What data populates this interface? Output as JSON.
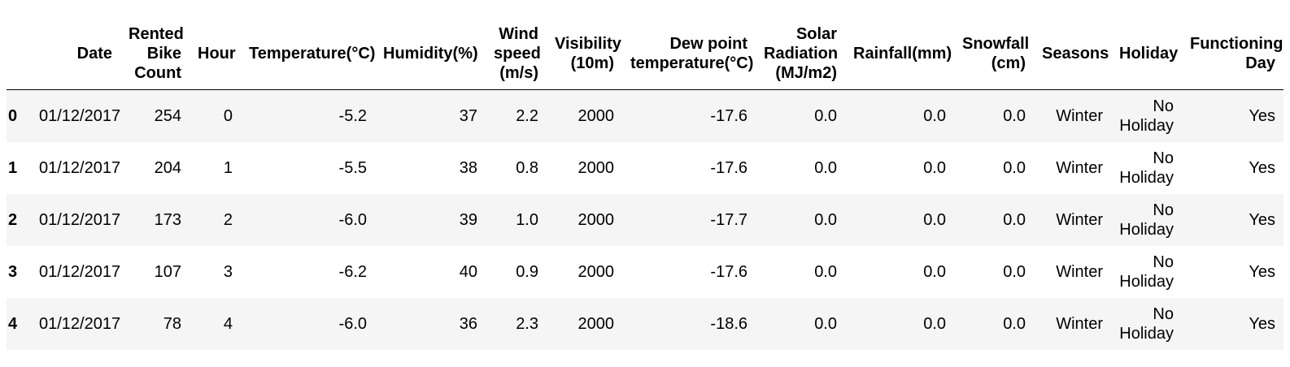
{
  "colors": {
    "stripe": "#f5f5f5",
    "header_rule": "#000000",
    "text": "#000000",
    "background": "#ffffff"
  },
  "chart_data": {
    "type": "table",
    "title": "",
    "index_label": "",
    "index": [
      "0",
      "1",
      "2",
      "3",
      "4"
    ],
    "columns": [
      "Date",
      "Rented Bike Count",
      "Hour",
      "Temperature(°C)",
      "Humidity(%)",
      "Wind speed (m/s)",
      "Visibility (10m)",
      "Dew point temperature(°C)",
      "Solar Radiation (MJ/m2)",
      "Rainfall(mm)",
      "Snowfall (cm)",
      "Seasons",
      "Holiday",
      "Functioning Day"
    ],
    "rows": [
      [
        "01/12/2017",
        "254",
        "0",
        "-5.2",
        "37",
        "2.2",
        "2000",
        "-17.6",
        "0.0",
        "0.0",
        "0.0",
        "Winter",
        "No Holiday",
        "Yes"
      ],
      [
        "01/12/2017",
        "204",
        "1",
        "-5.5",
        "38",
        "0.8",
        "2000",
        "-17.6",
        "0.0",
        "0.0",
        "0.0",
        "Winter",
        "No Holiday",
        "Yes"
      ],
      [
        "01/12/2017",
        "173",
        "2",
        "-6.0",
        "39",
        "1.0",
        "2000",
        "-17.7",
        "0.0",
        "0.0",
        "0.0",
        "Winter",
        "No Holiday",
        "Yes"
      ],
      [
        "01/12/2017",
        "107",
        "3",
        "-6.2",
        "40",
        "0.9",
        "2000",
        "-17.6",
        "0.0",
        "0.0",
        "0.0",
        "Winter",
        "No Holiday",
        "Yes"
      ],
      [
        "01/12/2017",
        "78",
        "4",
        "-6.0",
        "36",
        "2.3",
        "2000",
        "-18.6",
        "0.0",
        "0.0",
        "0.0",
        "Winter",
        "No Holiday",
        "Yes"
      ]
    ]
  }
}
